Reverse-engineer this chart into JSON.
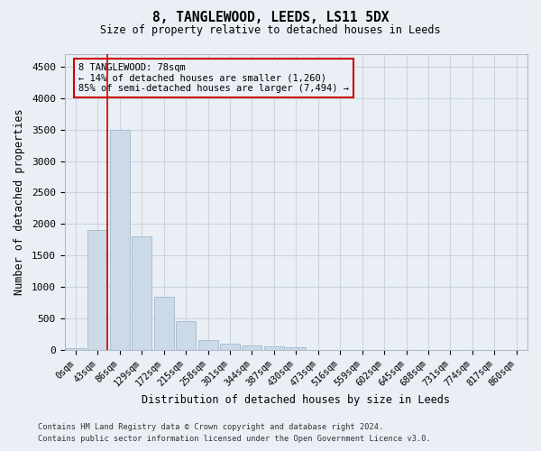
{
  "title": "8, TANGLEWOOD, LEEDS, LS11 5DX",
  "subtitle": "Size of property relative to detached houses in Leeds",
  "xlabel": "Distribution of detached houses by size in Leeds",
  "ylabel": "Number of detached properties",
  "footer_line1": "Contains HM Land Registry data © Crown copyright and database right 2024.",
  "footer_line2": "Contains public sector information licensed under the Open Government Licence v3.0.",
  "categories": [
    "0sqm",
    "43sqm",
    "86sqm",
    "129sqm",
    "172sqm",
    "215sqm",
    "258sqm",
    "301sqm",
    "344sqm",
    "387sqm",
    "430sqm",
    "473sqm",
    "516sqm",
    "559sqm",
    "602sqm",
    "645sqm",
    "688sqm",
    "731sqm",
    "774sqm",
    "817sqm",
    "860sqm"
  ],
  "values": [
    20,
    1900,
    3500,
    1800,
    850,
    450,
    160,
    100,
    70,
    55,
    40,
    0,
    0,
    0,
    0,
    0,
    0,
    0,
    0,
    0,
    0
  ],
  "bar_color": "#ccdae8",
  "bar_edge_color": "#a8bece",
  "bar_linewidth": 0.7,
  "grid_color": "#ccd4e0",
  "background_color": "#eaeff6",
  "annotation_box_color": "#cc0000",
  "annotation_line1": "8 TANGLEWOOD: 78sqm",
  "annotation_line2": "← 14% of detached houses are smaller (1,260)",
  "annotation_line3": "85% of semi-detached houses are larger (7,494) →",
  "marker_line_color": "#cc0000",
  "ylim": [
    0,
    4700
  ],
  "yticks": [
    0,
    500,
    1000,
    1500,
    2000,
    2500,
    3000,
    3500,
    4000,
    4500
  ]
}
